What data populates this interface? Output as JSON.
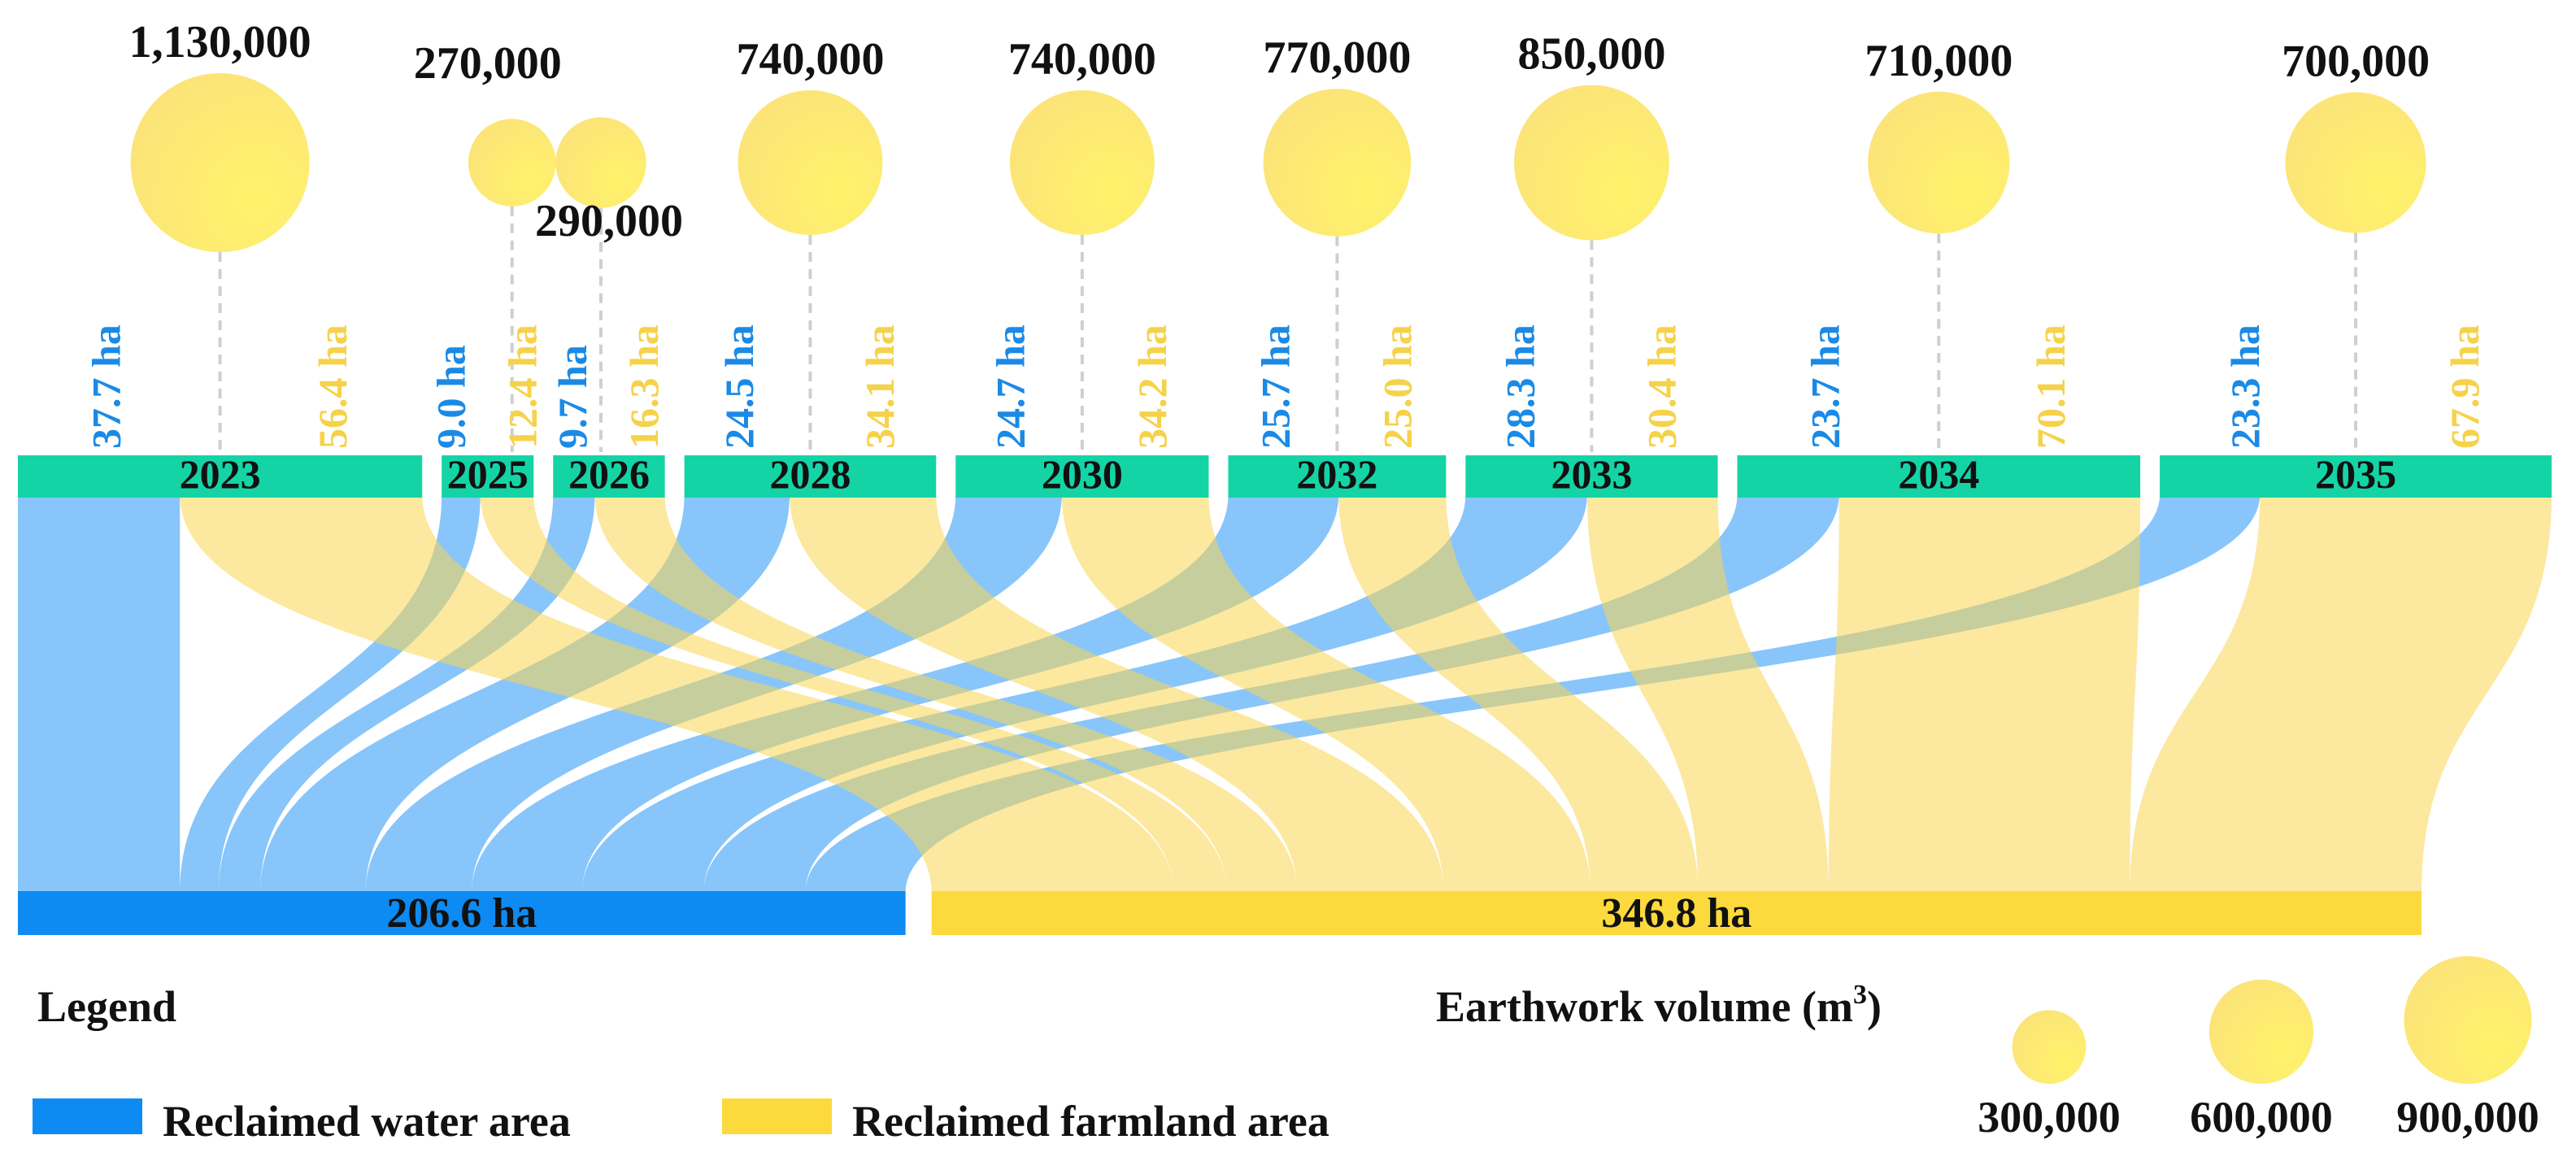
{
  "chart_data": {
    "type": "sankey",
    "years": [
      "2023",
      "2025",
      "2026",
      "2028",
      "2030",
      "2032",
      "2033",
      "2034",
      "2035"
    ],
    "earthwork_volume_m3": [
      1130000,
      270000,
      290000,
      740000,
      740000,
      770000,
      850000,
      710000,
      700000
    ],
    "earthwork_labels": [
      "1,130,000",
      "270,000",
      "290,000",
      "740,000",
      "740,000",
      "770,000",
      "850,000",
      "710,000",
      "700,000"
    ],
    "water_ha": [
      37.7,
      9.0,
      9.7,
      24.5,
      24.7,
      25.7,
      28.3,
      23.7,
      23.3
    ],
    "water_labels": [
      "37.7 ha",
      "9.0 ha",
      "9.7 ha",
      "24.5 ha",
      "24.7 ha",
      "25.7 ha",
      "28.3 ha",
      "23.7 ha",
      "23.3 ha"
    ],
    "farmland_ha": [
      56.4,
      12.4,
      16.3,
      34.1,
      34.2,
      25.0,
      30.4,
      70.1,
      67.9
    ],
    "farmland_labels": [
      "56.4 ha",
      "12.4 ha",
      "16.3 ha",
      "34.1 ha",
      "34.2 ha",
      "25.0 ha",
      "30.4 ha",
      "70.1 ha",
      "67.9 ha"
    ],
    "totals": {
      "water_ha": 206.6,
      "water_label": "206.6 ha",
      "farmland_ha": 346.8,
      "farmland_label": "346.8 ha"
    },
    "colors": {
      "water": "#0d8bf2",
      "water_label": "#1a8ae6",
      "farmland": "#fcd93c",
      "farmland_label": "#f6d24a",
      "year_bar": "#14d4a6",
      "bubble": "#fde85f"
    }
  },
  "legend": {
    "title": "Legend",
    "water": "Reclaimed water area",
    "farmland": "Reclaimed farmland area"
  },
  "size_legend": {
    "title_main": "Earthwork volume (m",
    "title_sup": "3",
    "title_close": ")",
    "values": [
      300000,
      600000,
      900000
    ],
    "labels": [
      "300,000",
      "600,000",
      "900,000"
    ]
  }
}
